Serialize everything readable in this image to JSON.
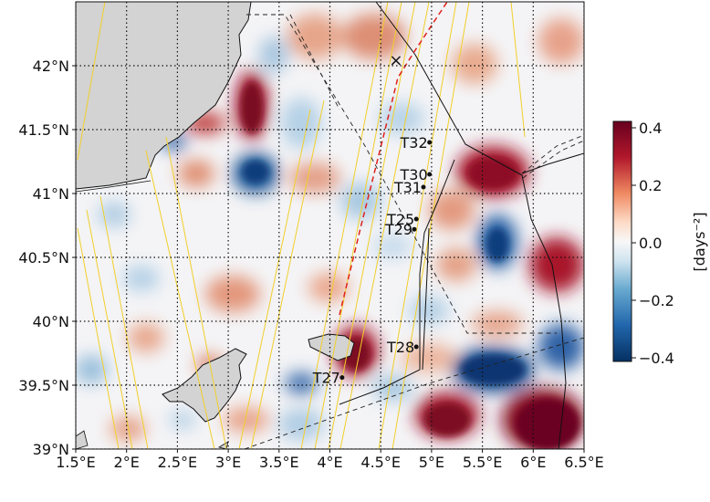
{
  "map": {
    "lon_ticks": [
      "1.5°E",
      "2°E",
      "2.5°E",
      "3°E",
      "3.5°E",
      "4°E",
      "4.5°E",
      "5°E",
      "5.5°E",
      "6°E",
      "6.5°E"
    ],
    "lat_ticks": [
      "39°N",
      "39.5°N",
      "40°N",
      "40.5°N",
      "41°N",
      "41.5°N",
      "42°N"
    ],
    "lon_range": [
      1.5,
      6.5
    ],
    "lat_range": [
      39.0,
      42.5
    ],
    "grid": true,
    "land_color": "#d3d3d3",
    "stations": [
      {
        "label": "T32",
        "lon": 4.98,
        "lat": 41.4
      },
      {
        "label": "T30",
        "lon": 4.98,
        "lat": 41.15
      },
      {
        "label": "T31",
        "lon": 4.92,
        "lat": 41.05
      },
      {
        "label": "T25",
        "lon": 4.85,
        "lat": 40.8
      },
      {
        "label": "T29",
        "lon": 4.83,
        "lat": 40.72
      },
      {
        "label": "T28",
        "lon": 4.85,
        "lat": 39.8
      },
      {
        "label": "T27",
        "lon": 4.12,
        "lat": 39.56
      }
    ],
    "marker": {
      "symbol": "×",
      "lon": 4.65,
      "lat": 42.04,
      "color": "#e0201b"
    }
  },
  "colorbar": {
    "ticks": [
      "0.4",
      "0.2",
      "0.0",
      "−0.2",
      "−0.4"
    ],
    "label": "[days⁻²]",
    "range": [
      -0.4,
      0.4
    ],
    "colormap": "RdBu_r"
  }
}
